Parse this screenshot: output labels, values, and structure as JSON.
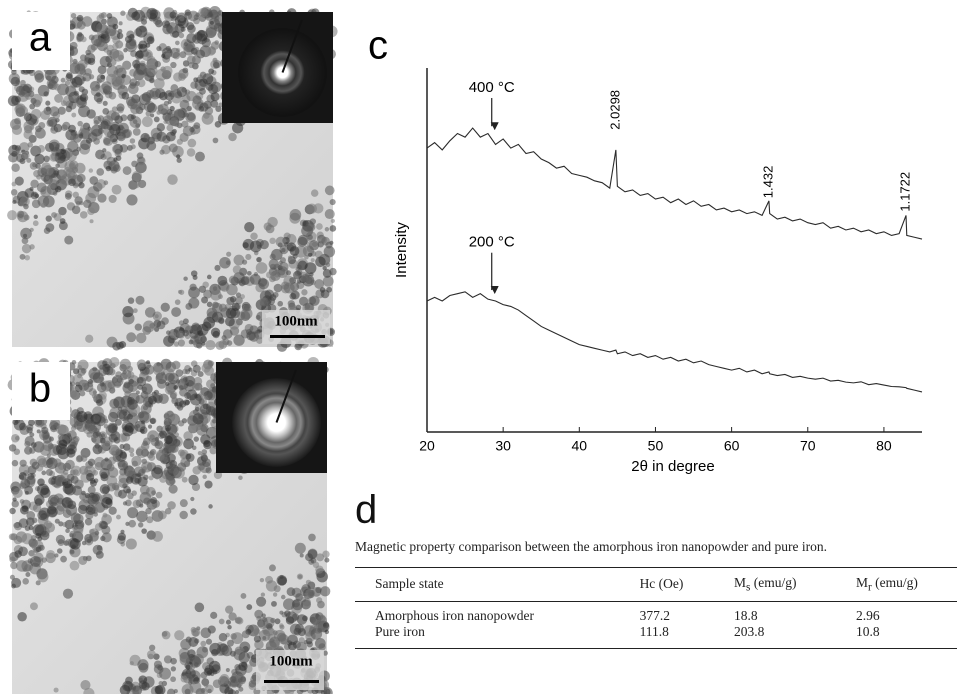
{
  "panels": {
    "a": {
      "label": "a",
      "scale_bar": "100nm"
    },
    "b": {
      "label": "b",
      "scale_bar": "100nm"
    },
    "c": {
      "label": "c"
    },
    "d": {
      "label": "d"
    }
  },
  "chart_data": {
    "type": "line",
    "xlabel": "2θ in degree",
    "ylabel": "Intensity",
    "xlim": [
      20,
      85
    ],
    "xticks": [
      20,
      30,
      40,
      50,
      60,
      70,
      80
    ],
    "ylim": [
      0,
      100
    ],
    "x": [
      20,
      21,
      22,
      23,
      24,
      25,
      26,
      27,
      28,
      29,
      30,
      31,
      32,
      33,
      34,
      35,
      36,
      37,
      38,
      39,
      40,
      41,
      42,
      43,
      44,
      44.8,
      45,
      46,
      47,
      48,
      49,
      50,
      51,
      52,
      53,
      54,
      55,
      56,
      57,
      58,
      59,
      60,
      61,
      62,
      63,
      64,
      64.9,
      65,
      66,
      67,
      68,
      69,
      70,
      71,
      72,
      73,
      74,
      75,
      76,
      77,
      78,
      79,
      80,
      81,
      82,
      82.9,
      83,
      84,
      85
    ],
    "series": [
      {
        "color": "#2b2b2b",
        "values": [
          78,
          79.5,
          77.5,
          80,
          82,
          81,
          83.5,
          81,
          82,
          79,
          80.5,
          78,
          79,
          76.5,
          77,
          75,
          74,
          72.5,
          73,
          71,
          70.5,
          70,
          69,
          68.5,
          67,
          77.5,
          67.5,
          66,
          66.5,
          65,
          65.5,
          64,
          64.5,
          63,
          64,
          62.5,
          63.5,
          62,
          62.5,
          61,
          61.5,
          60.5,
          61,
          60,
          60.5,
          59.5,
          63.5,
          60,
          58.5,
          59,
          58,
          58.5,
          57.5,
          57,
          57.5,
          56,
          56.5,
          55.5,
          56,
          55,
          55.5,
          54.5,
          55,
          54,
          54.5,
          59.5,
          54,
          53.5,
          53
        ]
      },
      {
        "color": "#2b2b2b",
        "values": [
          36,
          37,
          36,
          37.5,
          38,
          38.5,
          37,
          38,
          36.5,
          36,
          35,
          34.5,
          33.5,
          32,
          30.5,
          29,
          28,
          27,
          26,
          25,
          24,
          23.5,
          23,
          22.5,
          22,
          22.5,
          21.5,
          22,
          21,
          21.5,
          20.5,
          21,
          20,
          20.5,
          19.5,
          20,
          19,
          19.5,
          18.5,
          18,
          17.5,
          17,
          17.5,
          16.5,
          17,
          16,
          16.5,
          16,
          15.5,
          15.8,
          15,
          15.3,
          14.8,
          14.5,
          14.8,
          14,
          14.2,
          13.7,
          13.5,
          13.8,
          13,
          13.3,
          12.9,
          12.5,
          12.4,
          12.2,
          12,
          11.5,
          11
        ]
      }
    ],
    "annotations": [
      {
        "text": "400 °C",
        "x": 28.5,
        "y": 94.5,
        "arrow_to": 84
      },
      {
        "text": "200 °C",
        "x": 28.5,
        "y": 52,
        "arrow_to": 39
      },
      {
        "text": "2.0298",
        "x": 44.8,
        "y": 88.5,
        "vertical": true
      },
      {
        "text": "1.432",
        "x": 64.9,
        "y": 68.7,
        "vertical": true
      },
      {
        "text": "1.1722",
        "x": 82.9,
        "y": 66,
        "vertical": true
      }
    ]
  },
  "table": {
    "caption": "Magnetic property comparison between the amorphous iron nanopowder and pure iron.",
    "headers": [
      "Sample state",
      "Hc (Oe)",
      [
        "M",
        "s",
        "(emu/g)"
      ],
      [
        "M",
        "r",
        "(emu/g)"
      ]
    ],
    "rows": [
      [
        "Amorphous iron nanopowder",
        377.2,
        18.8,
        2.96
      ],
      [
        "Pure iron",
        111.8,
        203.8,
        10.8
      ]
    ]
  }
}
